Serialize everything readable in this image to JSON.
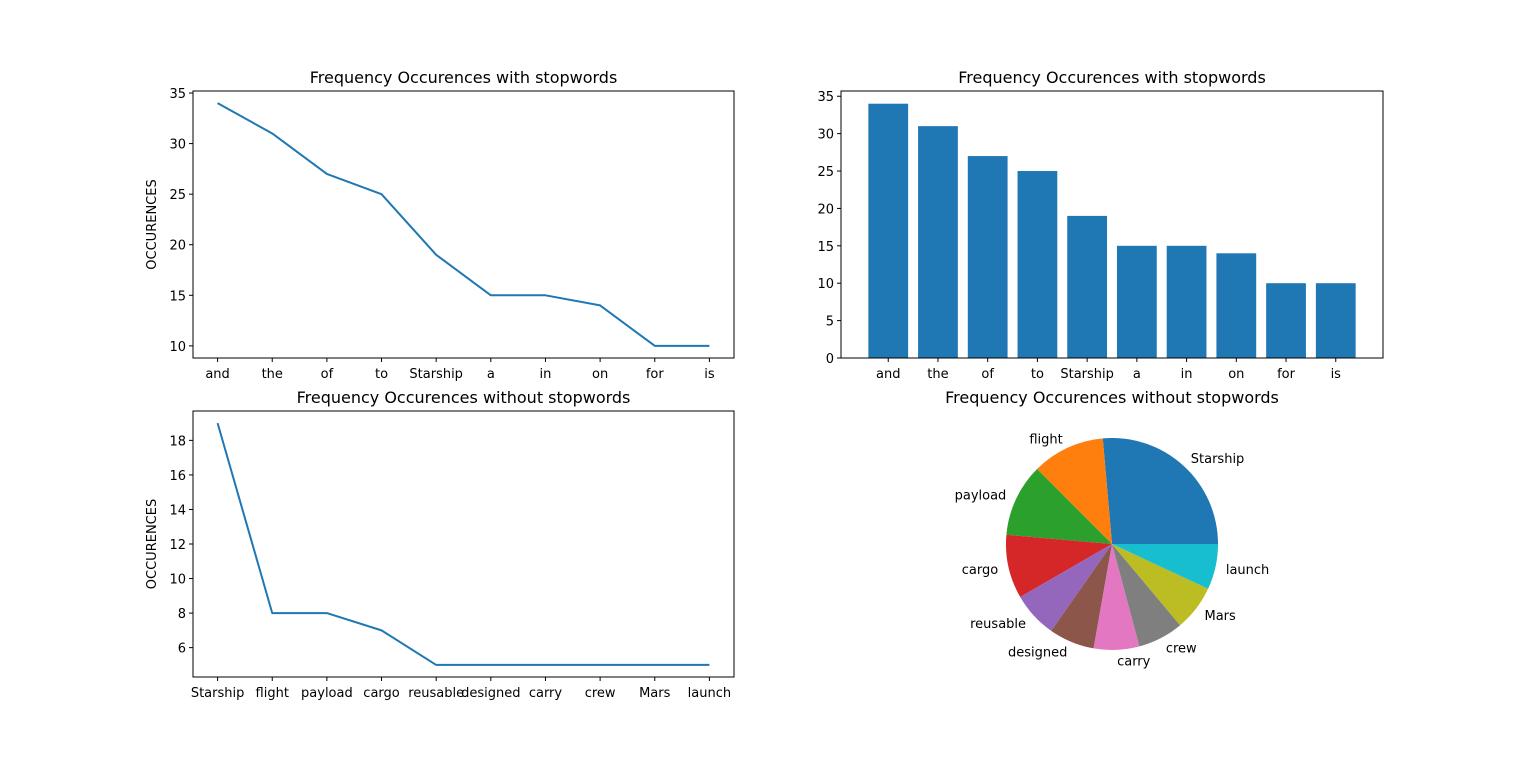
{
  "chart_data": [
    {
      "type": "line",
      "title": "Frequency Occurences with stopwords",
      "xlabel": "",
      "ylabel": "OCCURENCES",
      "categories": [
        "and",
        "the",
        "of",
        "to",
        "Starship",
        "a",
        "in",
        "on",
        "for",
        "is"
      ],
      "values": [
        34,
        31,
        27,
        25,
        19,
        15,
        15,
        14,
        10,
        10
      ],
      "ylim": [
        8.8,
        35.2
      ],
      "yticks": [
        10,
        15,
        20,
        25,
        30,
        35
      ],
      "color": "#1f77b4"
    },
    {
      "type": "bar",
      "title": "Frequency Occurences with stopwords",
      "xlabel": "",
      "ylabel": "",
      "categories": [
        "and",
        "the",
        "of",
        "to",
        "Starship",
        "a",
        "in",
        "on",
        "for",
        "is"
      ],
      "values": [
        34,
        31,
        27,
        25,
        19,
        15,
        15,
        14,
        10,
        10
      ],
      "ylim": [
        0,
        35.7
      ],
      "yticks": [
        0,
        5,
        10,
        15,
        20,
        25,
        30,
        35
      ],
      "color": "#1f77b4"
    },
    {
      "type": "line",
      "title": "Frequency Occurences without stopwords",
      "xlabel": "",
      "ylabel": "OCCURENCES",
      "categories": [
        "Starship",
        "flight",
        "payload",
        "cargo",
        "reusable",
        "designed",
        "carry",
        "crew",
        "Mars",
        "launch"
      ],
      "values": [
        19,
        8,
        8,
        7,
        5,
        5,
        5,
        5,
        5,
        5
      ],
      "ylim": [
        4.3,
        19.7
      ],
      "yticks": [
        6,
        8,
        10,
        12,
        14,
        16,
        18
      ],
      "color": "#1f77b4"
    },
    {
      "type": "pie",
      "title": "Frequency Occurences without stopwords",
      "labels": [
        "Starship",
        "flight",
        "payload",
        "cargo",
        "reusable",
        "designed",
        "carry",
        "crew",
        "Mars",
        "launch"
      ],
      "values": [
        19,
        8,
        8,
        7,
        5,
        5,
        5,
        5,
        5,
        5
      ],
      "colors": [
        "#1f77b4",
        "#ff7f0e",
        "#2ca02c",
        "#d62728",
        "#9467bd",
        "#8c564b",
        "#e377c2",
        "#7f7f7f",
        "#bcbd22",
        "#17becf"
      ]
    }
  ]
}
